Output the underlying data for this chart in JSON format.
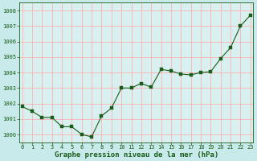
{
  "x": [
    0,
    1,
    2,
    3,
    4,
    5,
    6,
    7,
    8,
    9,
    10,
    11,
    12,
    13,
    14,
    15,
    16,
    17,
    18,
    19,
    20,
    21,
    22,
    23
  ],
  "y": [
    1001.8,
    1001.5,
    1001.1,
    1001.1,
    1000.5,
    1000.5,
    1000.0,
    999.85,
    1001.2,
    1001.7,
    1003.0,
    1003.0,
    1003.3,
    1003.05,
    1004.2,
    1004.1,
    1003.9,
    1003.85,
    1004.0,
    1004.05,
    1004.9,
    1005.6,
    1007.0,
    1007.7
  ],
  "ylim": [
    999.5,
    1008.5
  ],
  "yticks": [
    1000,
    1001,
    1002,
    1003,
    1004,
    1005,
    1006,
    1007,
    1008
  ],
  "xticks": [
    0,
    1,
    2,
    3,
    4,
    5,
    6,
    7,
    8,
    9,
    10,
    11,
    12,
    13,
    14,
    15,
    16,
    17,
    18,
    19,
    20,
    21,
    22,
    23
  ],
  "xlim": [
    -0.3,
    23.3
  ],
  "line_color": "#1a5c1a",
  "marker_color": "#1a5c1a",
  "bg_color": "#c8eaea",
  "plot_bg_color": "#d8f0f0",
  "grid_color": "#ffb0b0",
  "xlabel": "Graphe pression niveau de la mer (hPa)",
  "xlabel_color": "#1a5c1a",
  "tick_label_color": "#1a5c1a",
  "xlabel_fontsize": 6.5,
  "tick_fontsize": 5.0
}
